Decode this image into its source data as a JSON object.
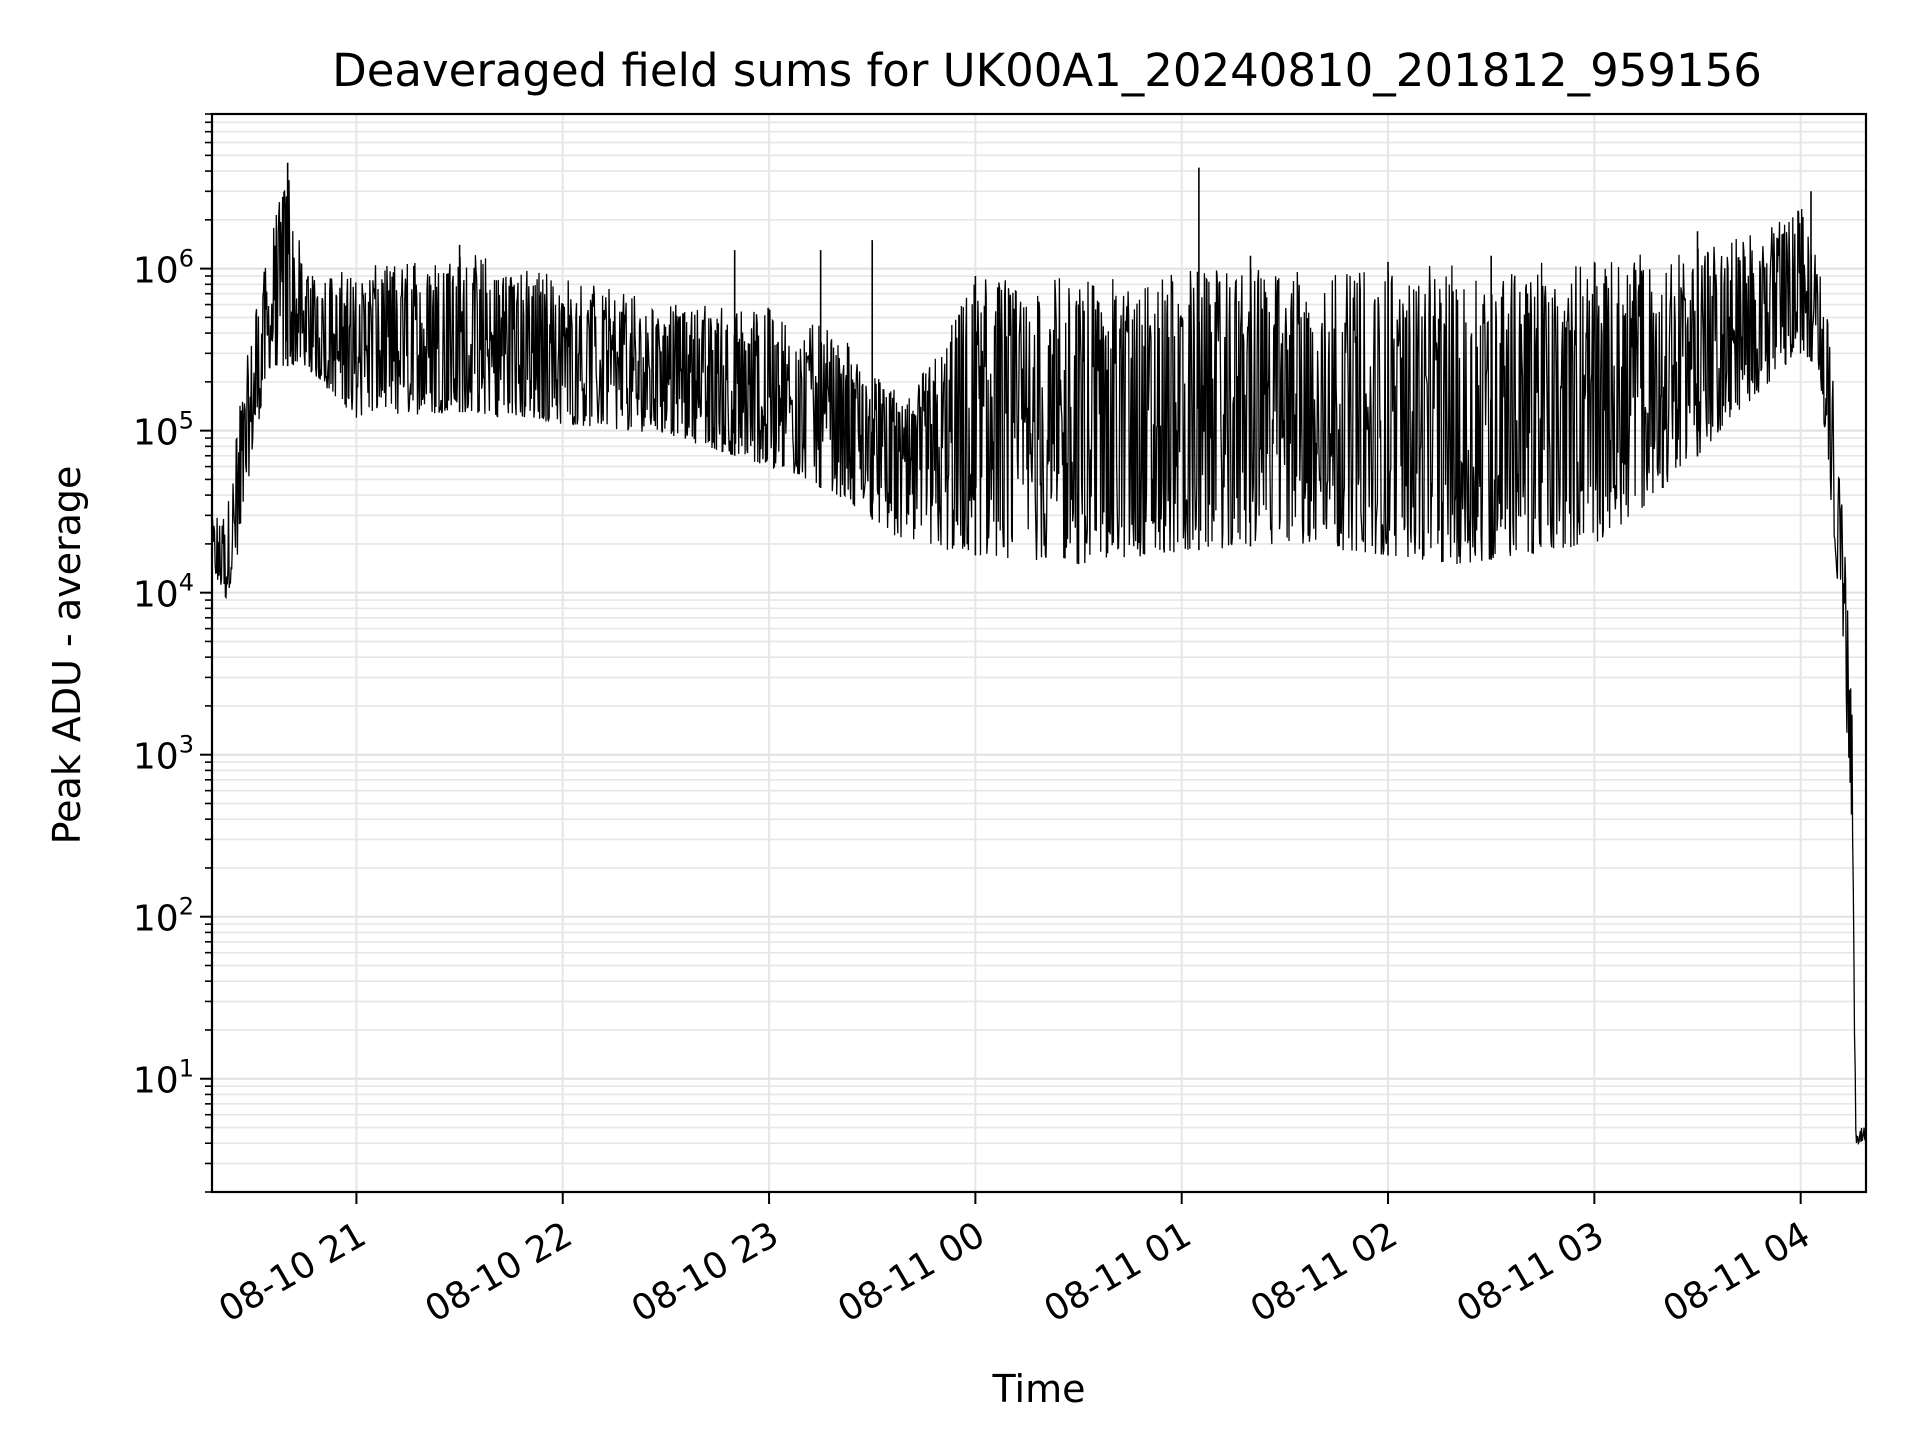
{
  "chart_data": {
    "type": "line",
    "title": "Deaveraged field sums for UK00A1_20240810_201812_959156",
    "xlabel": "Time",
    "ylabel": "Peak ADU - average",
    "yscale": "log",
    "ylim": [
      2,
      9000000
    ],
    "xlim": [
      "2024-08-10 20:18",
      "2024-08-11 04:19"
    ],
    "x_ticks": [
      {
        "t": "2024-08-10 21:00",
        "label": "08-10 21"
      },
      {
        "t": "2024-08-10 22:00",
        "label": "08-10 22"
      },
      {
        "t": "2024-08-10 23:00",
        "label": "08-10 23"
      },
      {
        "t": "2024-08-11 00:00",
        "label": "08-11 00"
      },
      {
        "t": "2024-08-11 01:00",
        "label": "08-11 01"
      },
      {
        "t": "2024-08-11 02:00",
        "label": "08-11 02"
      },
      {
        "t": "2024-08-11 03:00",
        "label": "08-11 03"
      },
      {
        "t": "2024-08-11 04:00",
        "label": "08-11 04"
      }
    ],
    "y_ticks": [
      {
        "base": "10",
        "exp": "1",
        "value": 10
      },
      {
        "base": "10",
        "exp": "2",
        "value": 100
      },
      {
        "base": "10",
        "exp": "3",
        "value": 1000
      },
      {
        "base": "10",
        "exp": "4",
        "value": 10000
      },
      {
        "base": "10",
        "exp": "5",
        "value": 100000
      },
      {
        "base": "10",
        "exp": "6",
        "value": 1000000
      }
    ],
    "grid": true,
    "series": [
      {
        "color": "#000000",
        "lower_envelope": {
          "x": [
            "2024-08-10 20:18",
            "2024-08-10 20:22",
            "2024-08-10 20:25",
            "2024-08-10 20:30",
            "2024-08-10 20:35",
            "2024-08-10 20:45",
            "2024-08-10 21:00",
            "2024-08-10 21:30",
            "2024-08-10 22:00",
            "2024-08-10 22:30",
            "2024-08-10 23:00",
            "2024-08-10 23:20",
            "2024-08-10 23:40",
            "2024-08-11 00:00",
            "2024-08-11 00:30",
            "2024-08-11 01:00",
            "2024-08-11 01:30",
            "2024-08-11 02:00",
            "2024-08-11 02:20",
            "2024-08-11 02:40",
            "2024-08-11 03:00",
            "2024-08-11 03:20",
            "2024-08-11 03:40",
            "2024-08-11 04:00",
            "2024-08-11 04:05",
            "2024-08-11 04:08",
            "2024-08-11 04:11",
            "2024-08-11 04:13",
            "2024-08-11 04:15",
            "2024-08-11 04:16",
            "2024-08-11 04:17",
            "2024-08-11 04:19"
          ],
          "y": [
            14000,
            9000,
            15000,
            80000,
            250000,
            250000,
            120000,
            130000,
            110000,
            95000,
            60000,
            40000,
            20000,
            17000,
            15000,
            18000,
            20000,
            17000,
            15000,
            17000,
            20000,
            40000,
            120000,
            300000,
            250000,
            60000,
            10000,
            2000,
            300,
            4,
            4,
            4
          ]
        },
        "upper_envelope": {
          "x": [
            "2024-08-10 20:18",
            "2024-08-10 20:22",
            "2024-08-10 20:25",
            "2024-08-10 20:30",
            "2024-08-10 20:35",
            "2024-08-10 20:40",
            "2024-08-10 20:45",
            "2024-08-10 21:00",
            "2024-08-10 21:30",
            "2024-08-10 22:00",
            "2024-08-10 22:30",
            "2024-08-10 23:00",
            "2024-08-10 23:20",
            "2024-08-10 23:40",
            "2024-08-11 00:00",
            "2024-08-11 00:30",
            "2024-08-11 01:00",
            "2024-08-11 01:30",
            "2024-08-11 02:00",
            "2024-08-11 02:30",
            "2024-08-11 03:00",
            "2024-08-11 03:30",
            "2024-08-11 03:50",
            "2024-08-11 04:00",
            "2024-08-11 04:05",
            "2024-08-11 04:08",
            "2024-08-11 04:11",
            "2024-08-11 04:13",
            "2024-08-11 04:15",
            "2024-08-11 04:16",
            "2024-08-11 04:17",
            "2024-08-11 04:19"
          ],
          "y": [
            30000,
            30000,
            100000,
            500000,
            1500000,
            4500000,
            900000,
            1000000,
            1300000,
            900000,
            600000,
            600000,
            400000,
            150000,
            900000,
            900000,
            1000000,
            1000000,
            1000000,
            1100000,
            1100000,
            1400000,
            1700000,
            2500000,
            1200000,
            500000,
            80000,
            20000,
            2000,
            5,
            5,
            5
          ]
        },
        "spikes": [
          {
            "x": "2024-08-10 20:40",
            "y": 4500000
          },
          {
            "x": "2024-08-10 21:30",
            "y": 1400000
          },
          {
            "x": "2024-08-10 22:50",
            "y": 1300000
          },
          {
            "x": "2024-08-10 23:15",
            "y": 1300000
          },
          {
            "x": "2024-08-10 23:30",
            "y": 1500000
          },
          {
            "x": "2024-08-11 00:00",
            "y": 900000
          },
          {
            "x": "2024-08-11 00:30",
            "y": 600000
          },
          {
            "x": "2024-08-11 01:05",
            "y": 4200000
          },
          {
            "x": "2024-08-11 01:20",
            "y": 1200000
          },
          {
            "x": "2024-08-11 02:00",
            "y": 1100000
          },
          {
            "x": "2024-08-11 02:30",
            "y": 1200000
          },
          {
            "x": "2024-08-11 03:30",
            "y": 1700000
          },
          {
            "x": "2024-08-11 04:03",
            "y": 3000000
          }
        ]
      }
    ]
  }
}
